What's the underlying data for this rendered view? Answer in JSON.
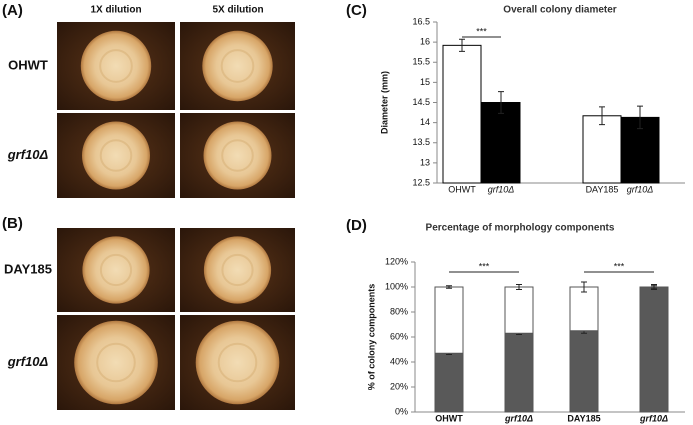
{
  "panels": {
    "a": "(A)",
    "b": "(B)",
    "c": "(C)",
    "d": "(D)"
  },
  "photos": {
    "columns": [
      "1X dilution",
      "5X dilution"
    ],
    "rows": [
      "OHWT",
      "grf10Δ",
      "DAY185",
      "grf10Δ"
    ]
  },
  "chart_data": [
    {
      "type": "bar",
      "title": "Overall colony diameter",
      "y_label": "Diameter (mm)",
      "categories": [
        "OHWT",
        "grf10Δ",
        "DAY185",
        "grf10Δ"
      ],
      "values": [
        15.92,
        14.5,
        14.17,
        14.13
      ],
      "errors": [
        0.15,
        0.27,
        0.22,
        0.28
      ],
      "colors": [
        "#ffffff",
        "#000000",
        "#ffffff",
        "#000000"
      ],
      "ylim": [
        12.5,
        16.5
      ],
      "yticks": [
        12.5,
        13,
        13.5,
        14,
        14.5,
        15,
        15.5,
        16,
        16.5
      ],
      "annotations": [
        "***"
      ]
    },
    {
      "type": "stacked_bar",
      "title": "Percentage of morphology components",
      "y_label": "% of colony components",
      "categories": [
        "OHWT",
        "grf10Δ",
        "DAY185",
        "grf10Δ"
      ],
      "series": [
        {
          "color": "#595959",
          "values": [
            47,
            63,
            65,
            100
          ],
          "errors": [
            1,
            1,
            2,
            1
          ]
        },
        {
          "color": "#ffffff",
          "values": [
            53,
            37,
            35,
            0
          ],
          "errors": [
            1,
            2,
            4,
            2
          ]
        }
      ],
      "ylim": [
        0,
        120
      ],
      "yticks": [
        {
          "value": 0,
          "label": "0%"
        },
        {
          "value": 20,
          "label": "20%"
        },
        {
          "value": 40,
          "label": "40%"
        },
        {
          "value": 60,
          "label": "60%"
        },
        {
          "value": 80,
          "label": "80%"
        },
        {
          "value": 100,
          "label": "100%"
        },
        {
          "value": 120,
          "label": "120%"
        }
      ],
      "annotations": [
        "***",
        "***"
      ]
    }
  ]
}
